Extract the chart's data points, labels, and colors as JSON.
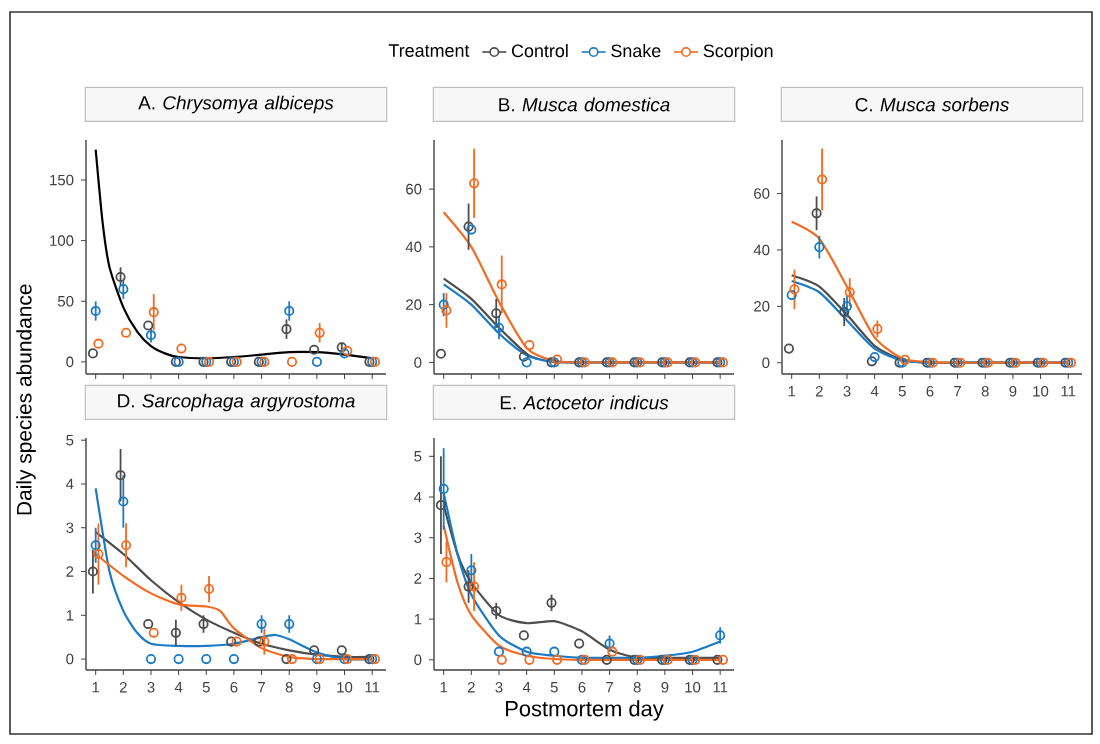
{
  "chart_data": [
    {
      "type": "scatter",
      "title": "A. *Chrysomya albiceps*",
      "ylabel": "Daily species abundance",
      "legend_title": "Treatment",
      "legend": "top",
      "tick_labels": "y",
      "xlim": [
        0.65,
        11.5
      ],
      "ylim": [
        -10,
        183
      ],
      "xticks": [
        1,
        2,
        3,
        4,
        5,
        6,
        7,
        8,
        9,
        10,
        11
      ],
      "yticks": [
        0,
        50,
        100,
        150
      ],
      "series": [
        {
          "name": "Control",
          "marker": "circle",
          "color": "#4d4d4d",
          "x": [
            0.9,
            1.9,
            2.9,
            3.9,
            4.9,
            5.9,
            6.9,
            7.9,
            8.9,
            9.9,
            10.9
          ],
          "values": [
            7,
            70,
            30,
            0,
            0,
            0,
            0,
            27,
            10,
            12,
            0
          ],
          "errors": [
            null,
            8,
            null,
            null,
            null,
            null,
            null,
            8,
            null,
            4,
            null
          ]
        },
        {
          "name": "Snake",
          "marker": "circle",
          "color": "#1a7bc4",
          "x": [
            1,
            2,
            3,
            4,
            5,
            6,
            7,
            8,
            9,
            10,
            11
          ],
          "values": [
            42,
            60,
            22,
            0,
            0,
            0,
            0,
            42,
            0,
            7,
            0
          ],
          "errors": [
            8,
            8,
            6,
            null,
            null,
            null,
            null,
            8,
            null,
            null,
            null
          ]
        },
        {
          "name": "Scorpion",
          "marker": "circle",
          "color": "#f26b21",
          "x": [
            1.1,
            2.1,
            3.1,
            4.1,
            5.1,
            6.1,
            7.1,
            8.1,
            9.1,
            10.1,
            11.1
          ],
          "values": [
            15,
            24,
            41,
            11,
            0,
            0,
            0,
            0,
            24,
            9,
            0
          ],
          "errors": [
            null,
            null,
            15,
            null,
            null,
            null,
            null,
            null,
            8,
            null,
            null
          ]
        },
        {
          "type": "line",
          "color": "#000000",
          "x": [
            1,
            1.25,
            1.5,
            2,
            2.5,
            3,
            3.5,
            4,
            5,
            6,
            7,
            8,
            9,
            10,
            11
          ],
          "values": [
            175,
            115,
            78,
            45,
            25,
            13,
            7,
            4,
            3,
            4,
            6,
            8,
            8,
            6,
            3
          ]
        }
      ]
    },
    {
      "type": "scatter",
      "title": "B. *Musca domestica*",
      "tick_labels": "y",
      "xlim": [
        0.65,
        11.5
      ],
      "ylim": [
        -4,
        77
      ],
      "xticks": [
        1,
        2,
        3,
        4,
        5,
        6,
        7,
        8,
        9,
        10,
        11
      ],
      "yticks": [
        0,
        20,
        40,
        60
      ],
      "series": [
        {
          "marker": "circle",
          "color": "#4d4d4d",
          "x": [
            0.9,
            1.9,
            2.9,
            3.9,
            4.9,
            5.9,
            6.9,
            7.9,
            8.9,
            9.9,
            10.9
          ],
          "values": [
            3,
            47,
            17,
            2,
            0,
            0,
            0,
            0,
            0,
            0,
            0
          ],
          "errors": [
            null,
            8,
            5,
            null,
            null,
            null,
            null,
            null,
            null,
            null,
            null
          ]
        },
        {
          "marker": "circle",
          "color": "#1a7bc4",
          "x": [
            1,
            2,
            3,
            4,
            5,
            6,
            7,
            8,
            9,
            10,
            11
          ],
          "values": [
            20,
            46,
            12,
            0,
            0,
            0,
            0,
            0,
            0,
            0,
            0
          ],
          "errors": [
            4,
            null,
            4,
            null,
            null,
            null,
            null,
            null,
            null,
            null,
            null
          ]
        },
        {
          "marker": "circle",
          "color": "#f26b21",
          "x": [
            1.1,
            2.1,
            3.1,
            4.1,
            5.1,
            6.1,
            7.1,
            8.1,
            9.1,
            10.1,
            11.1
          ],
          "values": [
            18,
            62,
            27,
            6,
            1,
            0,
            0,
            0,
            0,
            0,
            0
          ],
          "errors": [
            6,
            12,
            10,
            null,
            null,
            null,
            null,
            null,
            null,
            null,
            null
          ]
        },
        {
          "type": "line",
          "color": "#4d4d4d",
          "x": [
            1,
            2,
            3,
            4,
            4.5,
            5,
            6,
            7,
            8,
            9,
            10,
            11
          ],
          "values": [
            29,
            22,
            12,
            3,
            1,
            0.3,
            0,
            0,
            0,
            0,
            0,
            0
          ]
        },
        {
          "type": "line",
          "color": "#1a7bc4",
          "x": [
            1,
            2,
            3,
            4,
            5,
            6,
            7,
            8,
            9,
            10,
            11
          ],
          "values": [
            27,
            20,
            10,
            2.5,
            0.2,
            0,
            0,
            0,
            0,
            0,
            0
          ]
        },
        {
          "type": "line",
          "color": "#f26b21",
          "x": [
            1,
            2,
            3,
            4,
            5,
            6,
            7,
            8,
            9,
            10,
            11
          ],
          "values": [
            52,
            40,
            21,
            5,
            0.5,
            0,
            0,
            0,
            0,
            0,
            0
          ]
        }
      ]
    },
    {
      "type": "scatter",
      "title": "C. *Musca sorbens*",
      "xlim": [
        0.65,
        11.5
      ],
      "ylim": [
        -4,
        79
      ],
      "xticks": [
        1,
        2,
        3,
        4,
        5,
        6,
        7,
        8,
        9,
        10,
        11
      ],
      "yticks": [
        0,
        20,
        40,
        60
      ],
      "series": [
        {
          "marker": "circle",
          "color": "#4d4d4d",
          "x": [
            0.9,
            1.9,
            2.9,
            3.9,
            4.9,
            5.9,
            6.9,
            7.9,
            8.9,
            9.9,
            10.9
          ],
          "values": [
            5,
            53,
            18,
            0.5,
            0,
            0,
            0,
            0,
            0,
            0,
            0
          ],
          "errors": [
            null,
            6,
            5,
            null,
            null,
            null,
            null,
            null,
            null,
            null,
            null
          ]
        },
        {
          "marker": "circle",
          "color": "#1a7bc4",
          "x": [
            1,
            2,
            3,
            4,
            5,
            6,
            7,
            8,
            9,
            10,
            11
          ],
          "values": [
            24,
            41,
            20,
            2,
            0,
            0,
            0,
            0,
            0,
            0,
            0
          ],
          "errors": [
            null,
            4,
            4,
            null,
            null,
            null,
            null,
            null,
            null,
            null,
            null
          ]
        },
        {
          "marker": "circle",
          "color": "#f26b21",
          "x": [
            1.1,
            2.1,
            3.1,
            4.1,
            5.1,
            6.1,
            7.1,
            8.1,
            9.1,
            10.1,
            11.1
          ],
          "values": [
            26,
            65,
            25,
            12,
            1,
            0,
            0,
            0,
            0,
            0,
            0
          ],
          "errors": [
            7,
            11,
            5,
            3,
            null,
            null,
            null,
            null,
            null,
            null,
            null
          ]
        },
        {
          "type": "line",
          "color": "#4d4d4d",
          "x": [
            1,
            2,
            3,
            4,
            5,
            6,
            7,
            8,
            9,
            10,
            11
          ],
          "values": [
            31,
            27,
            17,
            6,
            1,
            0,
            0,
            0,
            0,
            0,
            0
          ]
        },
        {
          "type": "line",
          "color": "#1a7bc4",
          "x": [
            1,
            2,
            3,
            4,
            5,
            6,
            7,
            8,
            9,
            10,
            11
          ],
          "values": [
            29,
            25,
            15,
            5,
            0.8,
            0,
            0,
            0,
            0,
            0,
            0
          ]
        },
        {
          "type": "line",
          "color": "#f26b21",
          "x": [
            1,
            2,
            3,
            4,
            5,
            6,
            7,
            8,
            9,
            10,
            11
          ],
          "values": [
            50,
            44,
            27,
            9,
            1.5,
            0.2,
            0,
            0,
            0,
            0,
            0
          ]
        }
      ]
    },
    {
      "type": "scatter",
      "title": "D. *Sarcophaga argyrostoma*",
      "xlim": [
        0.65,
        11.5
      ],
      "ylim": [
        -0.25,
        5.05
      ],
      "xticks": [
        1,
        2,
        3,
        4,
        5,
        6,
        7,
        8,
        9,
        10,
        11
      ],
      "yticks": [
        0,
        1,
        2,
        3,
        4,
        5
      ],
      "series": [
        {
          "marker": "circle",
          "color": "#4d4d4d",
          "x": [
            0.9,
            1.9,
            2.9,
            3.9,
            4.9,
            5.9,
            6.9,
            7.9,
            8.9,
            9.9,
            10.9
          ],
          "values": [
            2.0,
            4.2,
            0.8,
            0.6,
            0.8,
            0.4,
            0.4,
            0,
            0.2,
            0.2,
            0
          ],
          "errors": [
            0.5,
            0.6,
            null,
            0.3,
            0.2,
            null,
            null,
            null,
            null,
            null,
            null
          ]
        },
        {
          "marker": "circle",
          "color": "#1a7bc4",
          "x": [
            1,
            2,
            3,
            4,
            5,
            6,
            7,
            8,
            9,
            10,
            11
          ],
          "values": [
            2.6,
            3.6,
            0,
            0,
            0,
            0,
            0.8,
            0.8,
            0,
            0,
            0
          ],
          "errors": [
            0.4,
            0.6,
            null,
            null,
            null,
            null,
            0.2,
            0.2,
            null,
            null,
            null
          ]
        },
        {
          "marker": "circle",
          "color": "#f26b21",
          "x": [
            1.1,
            2.1,
            3.1,
            4.1,
            5.1,
            6.1,
            7.1,
            8.1,
            9.1,
            10.1,
            11.1
          ],
          "values": [
            2.4,
            2.6,
            0.6,
            1.4,
            1.6,
            0.4,
            0.4,
            0,
            0,
            0,
            0
          ],
          "errors": [
            0.7,
            0.5,
            null,
            0.3,
            0.3,
            null,
            0.3,
            null,
            null,
            null,
            null
          ]
        },
        {
          "type": "line",
          "color": "#4d4d4d",
          "x": [
            1,
            2,
            3,
            4,
            5,
            6,
            7,
            8,
            9,
            10,
            11
          ],
          "values": [
            2.9,
            2.4,
            1.8,
            1.3,
            0.9,
            0.6,
            0.35,
            0.2,
            0.1,
            0.05,
            0.05
          ]
        },
        {
          "type": "line",
          "color": "#1a7bc4",
          "x": [
            1,
            1.5,
            2,
            2.5,
            3,
            4,
            5,
            6,
            7,
            7.5,
            8,
            9,
            10,
            11
          ],
          "values": [
            3.9,
            2.0,
            1.1,
            0.6,
            0.35,
            0.3,
            0.3,
            0.35,
            0.5,
            0.55,
            0.45,
            0.15,
            0,
            0
          ]
        },
        {
          "type": "line",
          "color": "#f26b21",
          "x": [
            1,
            2,
            3,
            4,
            5,
            5.5,
            6,
            7,
            8,
            9,
            10,
            11
          ],
          "values": [
            2.4,
            1.9,
            1.5,
            1.25,
            1.2,
            1.1,
            0.7,
            0.25,
            0.05,
            0,
            0,
            0
          ]
        }
      ]
    },
    {
      "type": "scatter",
      "title": "E. *Actocetor indicus*",
      "xlabel": "Postmortem day",
      "xlim": [
        0.65,
        11.5
      ],
      "ylim": [
        -0.25,
        5.45
      ],
      "xticks": [
        1,
        2,
        3,
        4,
        5,
        6,
        7,
        8,
        9,
        10,
        11
      ],
      "yticks": [
        0,
        1,
        2,
        3,
        4,
        5
      ],
      "series": [
        {
          "marker": "circle",
          "color": "#4d4d4d",
          "x": [
            0.9,
            1.9,
            2.9,
            3.9,
            4.9,
            5.9,
            6.9,
            7.9,
            8.9,
            9.9,
            10.9
          ],
          "values": [
            3.8,
            1.8,
            1.2,
            0.6,
            1.4,
            0.4,
            0,
            0,
            0,
            0,
            0
          ],
          "errors": [
            1.2,
            0.4,
            0.2,
            null,
            0.2,
            null,
            null,
            null,
            null,
            null,
            null
          ]
        },
        {
          "marker": "circle",
          "color": "#1a7bc4",
          "x": [
            1,
            2,
            3,
            4,
            5,
            6,
            7,
            8,
            9,
            10,
            11
          ],
          "values": [
            4.2,
            2.2,
            0.2,
            0.2,
            0.2,
            0,
            0.4,
            0,
            0,
            0,
            0.6
          ],
          "errors": [
            1.0,
            0.4,
            null,
            null,
            null,
            null,
            0.2,
            null,
            null,
            null,
            0.2
          ]
        },
        {
          "marker": "circle",
          "color": "#f26b21",
          "x": [
            1.1,
            2.1,
            3.1,
            4.1,
            5.1,
            6.1,
            7.1,
            8.1,
            9.1,
            10.1,
            11.1
          ],
          "values": [
            2.4,
            1.8,
            0,
            0,
            0,
            0,
            0.2,
            0,
            0,
            0,
            0
          ],
          "errors": [
            0.5,
            0.6,
            null,
            null,
            null,
            null,
            null,
            null,
            null,
            null,
            null
          ]
        },
        {
          "type": "line",
          "color": "#4d4d4d",
          "x": [
            1,
            1.5,
            2,
            3,
            4,
            5,
            6,
            7,
            8,
            9,
            10,
            11
          ],
          "values": [
            3.8,
            2.6,
            1.9,
            1.1,
            0.9,
            0.95,
            0.7,
            0.25,
            0.05,
            0.05,
            0.05,
            0.05
          ]
        },
        {
          "type": "line",
          "color": "#1a7bc4",
          "x": [
            1,
            1.5,
            2,
            3,
            4,
            5,
            6,
            7,
            8,
            9,
            10,
            11
          ],
          "values": [
            4.1,
            2.6,
            1.6,
            0.6,
            0.2,
            0.1,
            0.05,
            0.05,
            0.05,
            0.1,
            0.2,
            0.45
          ]
        },
        {
          "type": "line",
          "color": "#f26b21",
          "x": [
            1,
            1.5,
            2,
            3,
            4,
            5,
            6,
            7,
            8,
            9,
            10,
            11
          ],
          "values": [
            3.3,
            1.9,
            1.1,
            0.35,
            0.1,
            0.02,
            0,
            0,
            0,
            0,
            0,
            0
          ]
        }
      ]
    }
  ]
}
